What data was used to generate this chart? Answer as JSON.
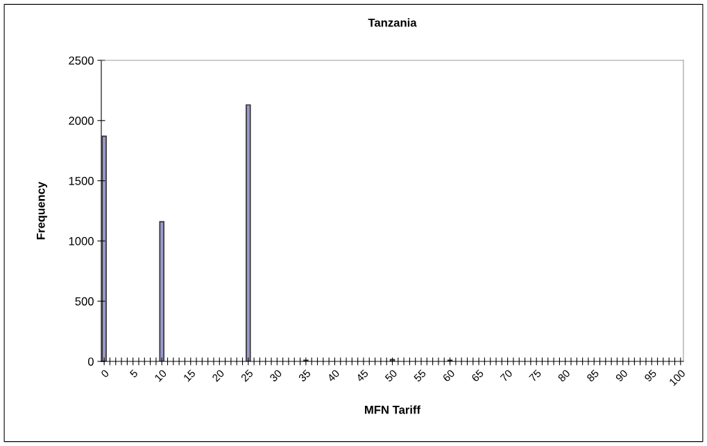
{
  "chart_data": {
    "type": "bar",
    "title": "Tanzania",
    "xlabel": "MFN Tariff",
    "ylabel": "Frequency",
    "categories": [
      "0",
      null,
      null,
      null,
      null,
      "5",
      null,
      null,
      null,
      null,
      "10",
      null,
      null,
      null,
      null,
      "15",
      null,
      null,
      null,
      null,
      "20",
      null,
      null,
      null,
      null,
      "25",
      null,
      null,
      null,
      null,
      "30",
      null,
      null,
      null,
      null,
      "35",
      null,
      null,
      null,
      null,
      "40",
      null,
      null,
      null,
      null,
      "45",
      null,
      null,
      null,
      null,
      "50",
      null,
      null,
      null,
      null,
      "55",
      null,
      null,
      null,
      null,
      "60",
      null,
      null,
      null,
      null,
      "65",
      null,
      null,
      null,
      null,
      "70",
      null,
      null,
      null,
      null,
      "75",
      null,
      null,
      null,
      null,
      "80",
      null,
      null,
      null,
      null,
      "85",
      null,
      null,
      null,
      null,
      "90",
      null,
      null,
      null,
      null,
      "95",
      null,
      null,
      null,
      null,
      "100"
    ],
    "values": [
      1870,
      0,
      0,
      0,
      0,
      0,
      0,
      0,
      0,
      0,
      1160,
      0,
      0,
      0,
      0,
      0,
      0,
      0,
      0,
      0,
      0,
      0,
      0,
      0,
      0,
      2130,
      0,
      0,
      0,
      0,
      0,
      0,
      0,
      0,
      0,
      10,
      0,
      0,
      0,
      0,
      0,
      0,
      0,
      0,
      0,
      0,
      0,
      0,
      0,
      0,
      15,
      0,
      0,
      0,
      0,
      0,
      0,
      0,
      0,
      0,
      10,
      0,
      0,
      0,
      0,
      0,
      0,
      0,
      0,
      0,
      0,
      0,
      0,
      0,
      0,
      0,
      0,
      0,
      0,
      0,
      0,
      0,
      0,
      0,
      0,
      0,
      0,
      0,
      0,
      0,
      0,
      0,
      0,
      0,
      0,
      0,
      0,
      0,
      0,
      0,
      0
    ],
    "color": "#9999cc",
    "ylim": [
      0,
      2500
    ],
    "yticks": [
      0,
      500,
      1000,
      1500,
      2000,
      2500
    ],
    "grid": false,
    "legend": false
  }
}
